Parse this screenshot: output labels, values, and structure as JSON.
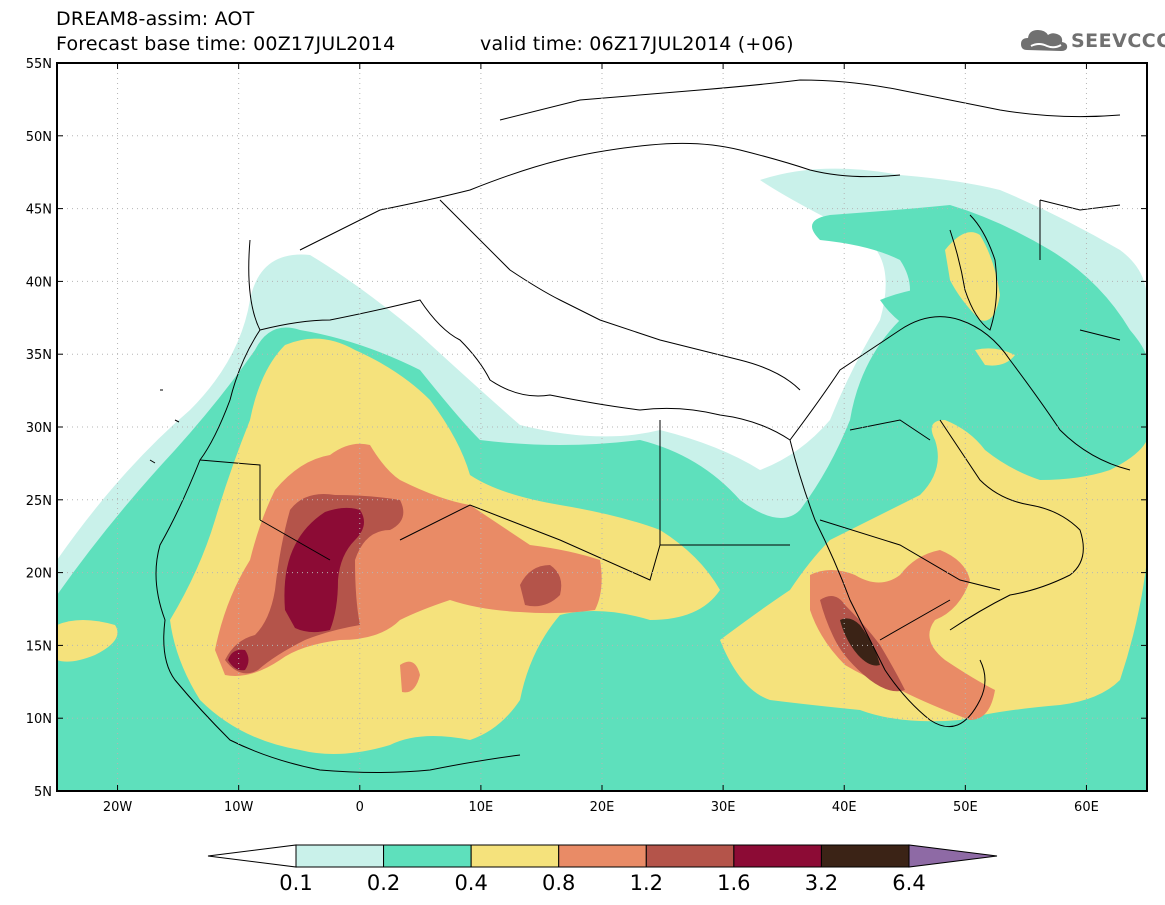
{
  "header": {
    "line1": "DREAM8-assim: AOT",
    "line2": "Forecast base time: 00Z17JUL2014",
    "valid": "valid time: 06Z17JUL2014 (+06)"
  },
  "logo": {
    "text": "SEEVCCC",
    "icon": "cloud-logo-icon",
    "color": "#707070"
  },
  "map": {
    "projection": "lat-lon",
    "lon_range": [
      -25,
      65
    ],
    "lat_range": [
      5,
      55
    ],
    "lat_ticks": [
      "5N",
      "10N",
      "15N",
      "20N",
      "25N",
      "30N",
      "35N",
      "40N",
      "45N",
      "50N",
      "55N"
    ],
    "lon_ticks": [
      "20W",
      "10W",
      "0",
      "10E",
      "20E",
      "30E",
      "40E",
      "50E",
      "60E"
    ],
    "lat_tick_values": [
      5,
      10,
      15,
      20,
      25,
      30,
      35,
      40,
      45,
      50,
      55
    ],
    "lon_tick_values": [
      -20,
      -10,
      0,
      10,
      20,
      30,
      40,
      50,
      60
    ],
    "grid": "dotted"
  },
  "colorbar": {
    "labels": [
      "0.1",
      "0.2",
      "0.4",
      "0.8",
      "1.2",
      "1.6",
      "3.2",
      "6.4"
    ],
    "colors": [
      "#ffffff",
      "#c9f1ea",
      "#5ee0bc",
      "#f5e27c",
      "#e98b66",
      "#b4544a",
      "#8c0b35",
      "#3b2316",
      "#8e6aa5"
    ]
  }
}
